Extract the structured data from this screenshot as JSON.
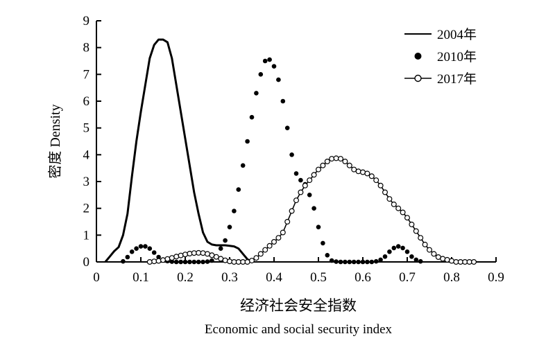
{
  "chart_data": {
    "type": "line",
    "xlabel_cn": "经济社会安全指数",
    "xlabel_en": "Economic and social security index",
    "ylabel": "密度 Density",
    "xlim": [
      0,
      0.9
    ],
    "ylim": [
      0,
      9
    ],
    "x_ticks": [
      "0",
      "0.1",
      "0.2",
      "0.3",
      "0.4",
      "0.5",
      "0.6",
      "0.7",
      "0.8",
      "0.9"
    ],
    "y_ticks": [
      "0",
      "1",
      "2",
      "3",
      "4",
      "5",
      "6",
      "7",
      "8",
      "9"
    ],
    "grid": false,
    "legend_position": "top-right",
    "series": [
      {
        "name": "2004年",
        "style": "solid-line",
        "x": [
          0.02,
          0.03,
          0.04,
          0.05,
          0.06,
          0.07,
          0.08,
          0.09,
          0.1,
          0.11,
          0.12,
          0.13,
          0.14,
          0.15,
          0.16,
          0.17,
          0.18,
          0.19,
          0.2,
          0.21,
          0.22,
          0.23,
          0.24,
          0.25,
          0.26,
          0.27,
          0.28,
          0.29,
          0.3,
          0.31,
          0.32,
          0.33,
          0.34,
          0.35
        ],
        "y": [
          0.0,
          0.2,
          0.4,
          0.55,
          1.0,
          1.8,
          3.2,
          4.5,
          5.6,
          6.6,
          7.6,
          8.1,
          8.3,
          8.3,
          8.2,
          7.6,
          6.6,
          5.6,
          4.6,
          3.6,
          2.6,
          1.8,
          1.1,
          0.75,
          0.65,
          0.62,
          0.62,
          0.62,
          0.6,
          0.58,
          0.5,
          0.3,
          0.1,
          0.0
        ]
      },
      {
        "name": "2010年",
        "style": "filled-dots",
        "x": [
          0.06,
          0.07,
          0.08,
          0.09,
          0.1,
          0.11,
          0.12,
          0.13,
          0.14,
          0.15,
          0.16,
          0.17,
          0.18,
          0.19,
          0.2,
          0.21,
          0.22,
          0.23,
          0.24,
          0.25,
          0.26,
          0.27,
          0.28,
          0.29,
          0.3,
          0.31,
          0.32,
          0.33,
          0.34,
          0.35,
          0.36,
          0.37,
          0.38,
          0.39,
          0.4,
          0.41,
          0.42,
          0.43,
          0.44,
          0.45,
          0.46,
          0.47,
          0.48,
          0.49,
          0.5,
          0.51,
          0.52,
          0.53,
          0.54,
          0.55,
          0.56,
          0.57,
          0.58,
          0.59,
          0.6,
          0.61,
          0.62,
          0.63,
          0.64,
          0.65,
          0.66,
          0.67,
          0.68,
          0.69,
          0.7,
          0.71,
          0.72,
          0.73
        ],
        "y": [
          0.02,
          0.18,
          0.38,
          0.5,
          0.58,
          0.58,
          0.5,
          0.35,
          0.18,
          0.08,
          0.03,
          0.01,
          0.0,
          0.0,
          0.0,
          0.0,
          0.0,
          0.0,
          0.0,
          0.01,
          0.05,
          0.2,
          0.5,
          0.8,
          1.3,
          1.9,
          2.7,
          3.6,
          4.5,
          5.4,
          6.3,
          7.0,
          7.5,
          7.55,
          7.3,
          6.8,
          6.0,
          5.0,
          4.0,
          3.3,
          3.05,
          2.9,
          2.5,
          2.0,
          1.3,
          0.7,
          0.25,
          0.05,
          0.01,
          0.0,
          0.0,
          0.0,
          0.0,
          0.0,
          0.0,
          0.0,
          0.0,
          0.02,
          0.08,
          0.2,
          0.38,
          0.52,
          0.58,
          0.52,
          0.38,
          0.2,
          0.08,
          0.02
        ]
      },
      {
        "name": "2017年",
        "style": "open-circles-line",
        "x": [
          0.12,
          0.13,
          0.14,
          0.15,
          0.16,
          0.17,
          0.18,
          0.19,
          0.2,
          0.21,
          0.22,
          0.23,
          0.24,
          0.25,
          0.26,
          0.27,
          0.28,
          0.29,
          0.3,
          0.31,
          0.32,
          0.33,
          0.34,
          0.35,
          0.36,
          0.37,
          0.38,
          0.39,
          0.4,
          0.41,
          0.42,
          0.43,
          0.44,
          0.45,
          0.46,
          0.47,
          0.48,
          0.49,
          0.5,
          0.51,
          0.52,
          0.53,
          0.54,
          0.55,
          0.56,
          0.57,
          0.58,
          0.59,
          0.6,
          0.61,
          0.62,
          0.63,
          0.64,
          0.65,
          0.66,
          0.67,
          0.68,
          0.69,
          0.7,
          0.71,
          0.72,
          0.73,
          0.74,
          0.75,
          0.76,
          0.77,
          0.78,
          0.79,
          0.8,
          0.81,
          0.82,
          0.83,
          0.84,
          0.85
        ],
        "y": [
          0.0,
          0.02,
          0.04,
          0.07,
          0.11,
          0.15,
          0.2,
          0.24,
          0.28,
          0.31,
          0.33,
          0.34,
          0.33,
          0.3,
          0.25,
          0.19,
          0.12,
          0.06,
          0.02,
          0.0,
          0.0,
          0.0,
          0.0,
          0.05,
          0.15,
          0.3,
          0.45,
          0.6,
          0.75,
          0.9,
          1.1,
          1.5,
          1.9,
          2.3,
          2.6,
          2.85,
          3.05,
          3.25,
          3.45,
          3.6,
          3.75,
          3.85,
          3.87,
          3.85,
          3.75,
          3.6,
          3.45,
          3.38,
          3.35,
          3.3,
          3.2,
          3.05,
          2.85,
          2.6,
          2.35,
          2.15,
          2.0,
          1.85,
          1.65,
          1.4,
          1.15,
          0.9,
          0.65,
          0.45,
          0.3,
          0.18,
          0.12,
          0.08,
          0.04,
          0.0,
          0.0,
          0.0,
          0.0,
          0.0
        ]
      }
    ]
  }
}
